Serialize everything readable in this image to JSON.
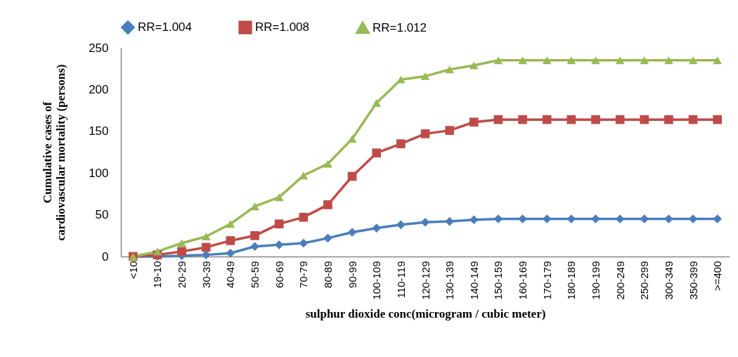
{
  "chart_data": {
    "type": "line",
    "xlabel": "sulphur dioxide conc(microgram / cubic meter)",
    "ylabel": "Cumulative cases of cardiovascular mortality (persons)",
    "categories": [
      "<10",
      "19-10",
      "20-29",
      "30-39",
      "40-49",
      "50-59",
      "60-69",
      "70-79",
      "80-89",
      "90-99",
      "100-109",
      "110-119",
      "120-129",
      "130-139",
      "140-149",
      "150-159",
      "160-169",
      "170-179",
      "180-189",
      "190-199",
      "200-249",
      "250-299",
      "300-349",
      "350-399",
      ">=400"
    ],
    "series": [
      {
        "name": "RR=1.004",
        "color": "#4a7ebb",
        "marker": "diamond",
        "values": [
          0,
          0,
          1,
          2,
          4,
          12,
          14,
          16,
          22,
          29,
          34,
          38,
          41,
          42,
          44,
          45,
          45,
          45,
          45,
          45,
          45,
          45,
          45,
          45,
          45
        ]
      },
      {
        "name": "RR=1.008",
        "color": "#be4b48",
        "marker": "square",
        "values": [
          0,
          2,
          6,
          11,
          19,
          25,
          39,
          47,
          62,
          96,
          124,
          135,
          147,
          151,
          161,
          164,
          164,
          164,
          164,
          164,
          164,
          164,
          164,
          164,
          164
        ]
      },
      {
        "name": "RR=1.012",
        "color": "#98b954",
        "marker": "triangle",
        "values": [
          0,
          6,
          16,
          24,
          39,
          60,
          71,
          97,
          111,
          141,
          184,
          212,
          216,
          224,
          229,
          235,
          235,
          235,
          235,
          235,
          235,
          235,
          235,
          235,
          235
        ]
      }
    ],
    "ylim": [
      0,
      250
    ],
    "yticks": [
      0,
      50,
      100,
      150,
      200,
      250
    ],
    "grid": false,
    "legend": "top",
    "line_style": "solid"
  }
}
